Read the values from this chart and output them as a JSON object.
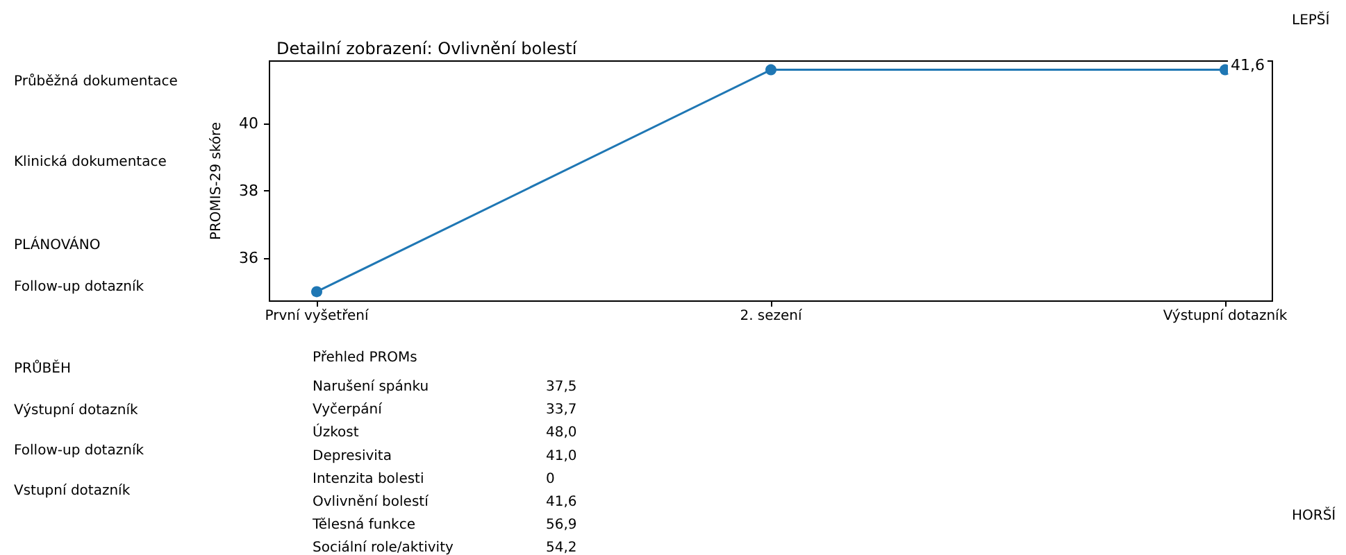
{
  "chart_data": {
    "type": "line",
    "title": "Detailní zobrazení: Ovlivnění bolestí",
    "ylabel": "PROMIS-29 skóre",
    "categories": [
      "První vyšetření",
      "2. sezení",
      "Výstupní dotazník"
    ],
    "series": [
      {
        "color": "#1f77b4",
        "values": [
          35.0,
          41.6,
          41.6
        ],
        "value_labels": [
          null,
          null,
          "41,6"
        ]
      }
    ],
    "ylim": [
      34.72,
      41.86
    ],
    "yticks": [
      36,
      38,
      40
    ],
    "grid": false,
    "marker": "circle",
    "line_style": "solid",
    "annotations": [
      "Průběžná dokumentace",
      "Klinická dokumentace",
      "PLÁNOVÁNO",
      "Follow-up dotazník",
      "PRŮBĚH",
      "Výstupní dotazník",
      "Follow-up dotazník",
      "Vstupní dotazník",
      "LEPŠÍ",
      "HORŠÍ",
      "Přehled PROMs",
      "Narušení spánku",
      "37,5",
      "Vyčerpání",
      "33,7",
      "Úzkost",
      "48,0",
      "Depresivita",
      "41,0",
      "Intenzita bolesti",
      "0",
      "Ovlivnění bolestí",
      "41,6",
      "Tělesná funkce",
      "56,9",
      "Sociální role/aktivity",
      "54,2"
    ]
  }
}
